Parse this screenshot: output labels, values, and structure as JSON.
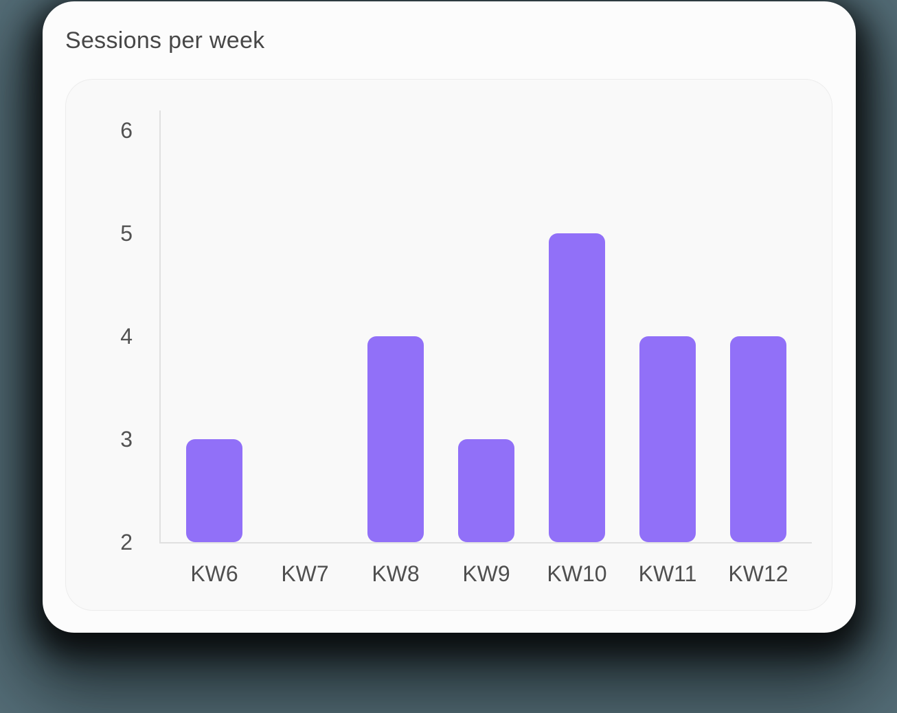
{
  "card": {
    "title": "Sessions per week"
  },
  "chart_data": {
    "type": "bar",
    "title": "Sessions per week",
    "categories": [
      "KW6",
      "KW7",
      "KW8",
      "KW9",
      "KW10",
      "KW11",
      "KW12"
    ],
    "values": [
      3,
      2,
      4,
      3,
      5,
      4,
      4
    ],
    "xlabel": "",
    "ylabel": "",
    "ylim": [
      2,
      6
    ],
    "yticks": [
      6,
      5,
      4,
      3,
      2
    ],
    "grid": false,
    "legend": false,
    "bar_color": "#9170f8",
    "axis_color": "#e0e0e0",
    "tick_label_color": "#525252",
    "category_label_color": "#4f4f4f",
    "card_background": "#fcfcfc",
    "panel_background": "#f9f9f9",
    "page_background": "#556e78"
  }
}
